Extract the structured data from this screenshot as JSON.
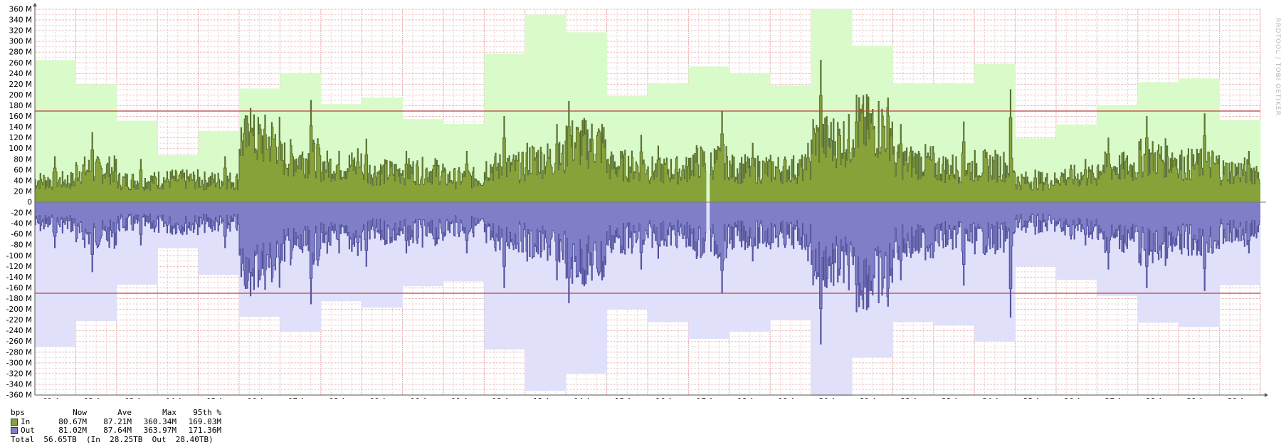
{
  "chart_data": {
    "type": "area",
    "watermark": "RRDTOOL / TOBI OETIKER",
    "ylim": [
      -360,
      360
    ],
    "y_ticks": [
      "360 M",
      "340 M",
      "320 M",
      "300 M",
      "280 M",
      "260 M",
      "240 M",
      "220 M",
      "200 M",
      "180 M",
      "160 M",
      "140 M",
      "120 M",
      "100 M",
      "80 M",
      "60 M",
      "40 M",
      "20 M",
      "0",
      "-20 M",
      "-40 M",
      "-60 M",
      "-80 M",
      "-100 M",
      "-120 M",
      "-140 M",
      "-160 M",
      "-180 M",
      "-200 M",
      "-220 M",
      "-240 M",
      "-260 M",
      "-280 M",
      "-300 M",
      "-320 M",
      "-340 M",
      "-360 M"
    ],
    "x_ticks": [
      "01 Apr",
      "02 Apr",
      "03 Apr",
      "04 Apr",
      "05 Apr",
      "06 Apr",
      "07 Apr",
      "08 Apr",
      "09 Apr",
      "10 Apr",
      "11 Apr",
      "12 Apr",
      "13 Apr",
      "14 Apr",
      "15 Apr",
      "16 Apr",
      "17 Apr",
      "18 Apr",
      "19 Apr",
      "20 Apr",
      "21 Apr",
      "22 Apr",
      "23 Apr",
      "24 Apr",
      "25 Apr",
      "26 Apr",
      "27 Apr",
      "28 Apr",
      "29 Apr",
      "30 Apr"
    ],
    "threshold_95th": 170,
    "colors": {
      "in_fill": "#88a23a",
      "in_line": "#556b2f",
      "in_max": "#d9fbc9",
      "out_fill": "#7f7fc8",
      "out_line": "#4e4e9a",
      "out_max": "#e0e0fb",
      "grid_minor": "#f2cccc",
      "grid_major": "#e4a9a9",
      "threshold": "#c03c3c"
    },
    "daily_max_in": [
      265,
      220,
      152,
      88,
      133,
      212,
      240,
      183,
      195,
      155,
      146,
      277,
      350,
      317,
      198,
      222,
      253,
      240,
      218,
      360,
      292,
      222,
      222,
      258,
      119,
      145,
      180,
      224,
      231,
      153
    ],
    "daily_max_out": [
      270,
      222,
      154,
      86,
      136,
      214,
      242,
      185,
      197,
      157,
      148,
      275,
      352,
      321,
      200,
      224,
      255,
      242,
      220,
      362,
      290,
      224,
      230,
      260,
      120,
      145,
      175,
      225,
      233,
      155
    ],
    "daily_peak_in": [
      85,
      130,
      80,
      60,
      85,
      175,
      190,
      100,
      118,
      95,
      95,
      160,
      145,
      188,
      125,
      105,
      170,
      110,
      110,
      265,
      200,
      145,
      150,
      210,
      60,
      80,
      120,
      160,
      165,
      95
    ],
    "daily_peak_out": [
      85,
      130,
      80,
      60,
      85,
      175,
      190,
      100,
      120,
      95,
      95,
      160,
      145,
      188,
      125,
      105,
      170,
      110,
      110,
      265,
      205,
      145,
      155,
      215,
      60,
      80,
      125,
      160,
      165,
      95
    ],
    "daily_base": [
      40,
      60,
      40,
      42,
      40,
      115,
      82,
      68,
      56,
      58,
      45,
      65,
      80,
      110,
      68,
      60,
      75,
      62,
      62,
      115,
      140,
      75,
      64,
      68,
      40,
      48,
      65,
      82,
      70,
      58
    ],
    "gap": {
      "day": 16,
      "from": 0.42,
      "to": 0.52
    }
  },
  "legend": {
    "header": {
      "label": "bps",
      "now": "Now",
      "ave": "Ave",
      "max": "Max",
      "p95": "95th %"
    },
    "rows": [
      {
        "name": "In",
        "now": "80.67M",
        "ave": "87.21M",
        "max": "360.34M",
        "p95": "169.03M",
        "color": "#88a23a"
      },
      {
        "name": "Out",
        "now": "81.02M",
        "ave": "87.64M",
        "max": "363.97M",
        "p95": "171.36M",
        "color": "#7f7fc8"
      }
    ],
    "total": "Total  56.65TB  (In  28.25TB  Out  28.40TB)"
  }
}
